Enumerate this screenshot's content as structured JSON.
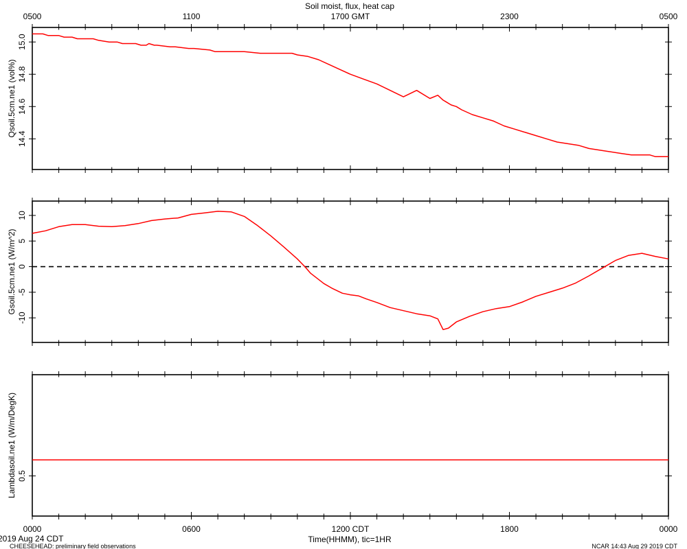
{
  "title": "Soil moist, flux, heat cap",
  "top_axis_labels": [
    "0500",
    "1100",
    "1700 GMT",
    "2300",
    "0500"
  ],
  "bottom_axis_labels": [
    "0000",
    "0600",
    "1200 CDT",
    "1800",
    "0000"
  ],
  "xlabel": "Time(HHMM), tic=1HR",
  "footer": {
    "date": "2019 Aug 24 CDT",
    "project": "CHEESEHEAD: preliminary field observations",
    "credit": "NCAR 14:43 Aug 29 2019 CDT"
  },
  "colors": {
    "series": "#ff0000",
    "zero_line": "#000000",
    "axes": "#000000"
  },
  "chart_data": [
    {
      "type": "line",
      "ylabel": "Qsoil.5cm.ne1 (vol%)",
      "xlim": [
        0,
        24
      ],
      "ylim": [
        14.21,
        15.09
      ],
      "yticks": [
        14.4,
        14.6,
        14.8,
        15.0
      ],
      "ytick_labels": [
        "14.4",
        "14.6",
        "14.8",
        "15.0"
      ],
      "series": [
        {
          "x": [
            0,
            0.4,
            0.6,
            1.0,
            1.2,
            1.5,
            1.7,
            2.3,
            2.5,
            2.9,
            3.2,
            3.4,
            3.9,
            4.1,
            4.3,
            4.4,
            4.6,
            4.7,
            5.2,
            5.4,
            5.9,
            6.1,
            6.7,
            6.9,
            7.4,
            8.0,
            8.6,
            8.8,
            9.0,
            9.8,
            10.0,
            10.4,
            10.8,
            11.2,
            11.6,
            12.0,
            12.5,
            13.0,
            13.5,
            14.0,
            14.5,
            15.0,
            15.3,
            15.5,
            15.6,
            15.8,
            16.0,
            16.2,
            16.6,
            17.0,
            17.4,
            17.8,
            18.2,
            18.6,
            19.0,
            19.4,
            19.8,
            20.2,
            20.6,
            21.0,
            21.4,
            21.8,
            22.2,
            22.6,
            23.0,
            23.3,
            23.5,
            23.7,
            24.0
          ],
          "y": [
            15.05,
            15.05,
            15.04,
            15.04,
            15.03,
            15.03,
            15.02,
            15.02,
            15.01,
            15.0,
            15.0,
            14.99,
            14.99,
            14.98,
            14.98,
            14.99,
            14.98,
            14.98,
            14.97,
            14.97,
            14.96,
            14.96,
            14.95,
            14.94,
            14.94,
            14.94,
            14.93,
            14.93,
            14.93,
            14.93,
            14.92,
            14.91,
            14.89,
            14.86,
            14.83,
            14.8,
            14.77,
            14.74,
            14.7,
            14.66,
            14.7,
            14.65,
            14.67,
            14.64,
            14.63,
            14.61,
            14.6,
            14.58,
            14.55,
            14.53,
            14.51,
            14.48,
            14.46,
            14.44,
            14.42,
            14.4,
            14.38,
            14.37,
            14.36,
            14.34,
            14.33,
            14.32,
            14.31,
            14.3,
            14.3,
            14.3,
            14.29,
            14.29,
            14.29
          ]
        }
      ]
    },
    {
      "type": "line",
      "ylabel": "Gsoil.5cm.ne1 (W/m^2)",
      "xlim": [
        0,
        24
      ],
      "ylim": [
        -14.8,
        12.8
      ],
      "yticks": [
        -10,
        -5,
        0,
        5,
        10
      ],
      "ytick_labels": [
        "-10",
        "-5",
        "0",
        "5",
        "10"
      ],
      "reference_line": 0,
      "series": [
        {
          "x": [
            0,
            0.5,
            1.0,
            1.5,
            2.0,
            2.5,
            3.0,
            3.5,
            4.0,
            4.5,
            5.0,
            5.5,
            6.0,
            6.5,
            7.0,
            7.5,
            8.0,
            8.5,
            9.0,
            9.5,
            10.0,
            10.3,
            10.5,
            10.8,
            11.0,
            11.3,
            11.7,
            12.0,
            12.3,
            12.6,
            13.0,
            13.5,
            14.0,
            14.5,
            15.0,
            15.3,
            15.5,
            15.7,
            16.0,
            16.5,
            17.0,
            17.5,
            18.0,
            18.5,
            19.0,
            19.5,
            20.0,
            20.5,
            21.0,
            21.5,
            22.0,
            22.5,
            23.0,
            23.5,
            24.0
          ],
          "y": [
            6.5,
            7.0,
            7.8,
            8.2,
            8.2,
            7.9,
            7.8,
            8.0,
            8.4,
            9.0,
            9.3,
            9.5,
            10.2,
            10.5,
            10.8,
            10.7,
            9.8,
            8.0,
            6.0,
            3.8,
            1.5,
            -0.1,
            -1.3,
            -2.5,
            -3.3,
            -4.2,
            -5.2,
            -5.5,
            -5.7,
            -6.3,
            -7.0,
            -8.0,
            -8.6,
            -9.2,
            -9.6,
            -10.2,
            -12.3,
            -12.0,
            -10.8,
            -9.7,
            -8.8,
            -8.2,
            -7.8,
            -6.9,
            -5.8,
            -5.0,
            -4.2,
            -3.2,
            -1.8,
            -0.3,
            1.2,
            2.2,
            2.6,
            2.0,
            1.5
          ]
        }
      ]
    },
    {
      "type": "line",
      "ylabel": "Lambdasoil.ne1 (W/m/DegK)",
      "xlim": [
        0,
        24
      ],
      "ylim": [
        0,
        1.76
      ],
      "yticks": [
        0.5
      ],
      "ytick_labels": [
        "0.5"
      ],
      "series": [
        {
          "x": [
            0,
            24
          ],
          "y": [
            0.7,
            0.7
          ]
        }
      ]
    }
  ]
}
